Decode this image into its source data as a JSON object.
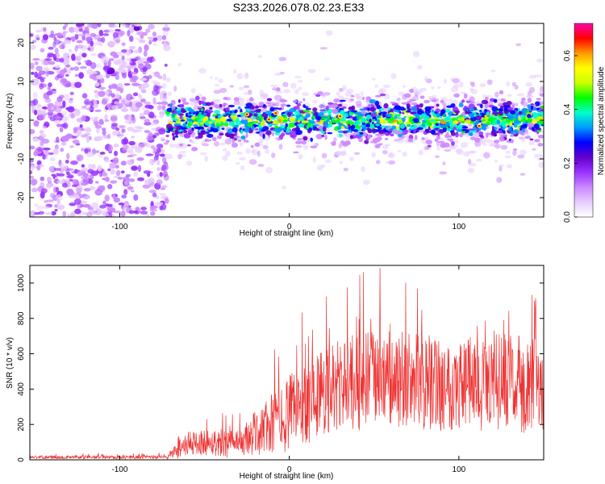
{
  "title": "S233.2026.078.02.23.E33",
  "chart_data": [
    {
      "type": "heatmap",
      "xlabel": "Height of straight line (km)",
      "ylabel": "Frequency (Hz)",
      "xlim": [
        -153,
        150
      ],
      "ylim": [
        -25,
        25
      ],
      "xticks": [
        -100,
        0,
        100
      ],
      "yticks": [
        -20,
        -10,
        0,
        10,
        20
      ],
      "noise_region_x": [
        -153,
        -72
      ],
      "signal_band_center_hz": 0,
      "signal_band_halfwidth_hz": 5,
      "colorbar": {
        "label": "Normalized spectral amplitude",
        "range": [
          0,
          0.72
        ],
        "ticks": [
          0.0,
          0.2,
          0.4,
          0.6
        ],
        "tick_labels": [
          "0.0",
          "0.2",
          "0.4",
          "0.6"
        ],
        "colormap": [
          "#ffffff",
          "#e6ccff",
          "#cc88ff",
          "#9933ff",
          "#6600cc",
          "#0000ff",
          "#0099ff",
          "#00ffcc",
          "#00ff00",
          "#ccff00",
          "#ffff00",
          "#ff9900",
          "#ff0000",
          "#ff00aa"
        ]
      }
    },
    {
      "type": "line",
      "xlabel": "Height of straight line (km)",
      "ylabel": "SNR (10 * v/v)",
      "xlim": [
        -153,
        150
      ],
      "ylim": [
        0,
        1100
      ],
      "xticks": [
        -100,
        0,
        100
      ],
      "yticks": [
        0,
        200,
        400,
        600,
        800,
        1000
      ],
      "color": "#ee3333",
      "envelope": {
        "x": [
          -153,
          -72,
          -66,
          -60,
          -50,
          -40,
          -30,
          -25,
          -20,
          -15,
          -10,
          -5,
          0,
          10,
          20,
          30,
          40,
          50,
          60,
          70,
          80,
          90,
          100,
          110,
          120,
          130,
          140,
          150
        ],
        "mean": [
          15,
          15,
          60,
          90,
          100,
          100,
          80,
          120,
          150,
          180,
          200,
          230,
          260,
          330,
          390,
          420,
          440,
          450,
          450,
          440,
          440,
          430,
          430,
          440,
          450,
          440,
          420,
          410
        ],
        "spread": [
          12,
          15,
          70,
          90,
          100,
          110,
          110,
          140,
          170,
          200,
          240,
          260,
          290,
          330,
          350,
          360,
          370,
          380,
          380,
          370,
          370,
          360,
          360,
          370,
          380,
          370,
          360,
          350
        ]
      }
    }
  ]
}
